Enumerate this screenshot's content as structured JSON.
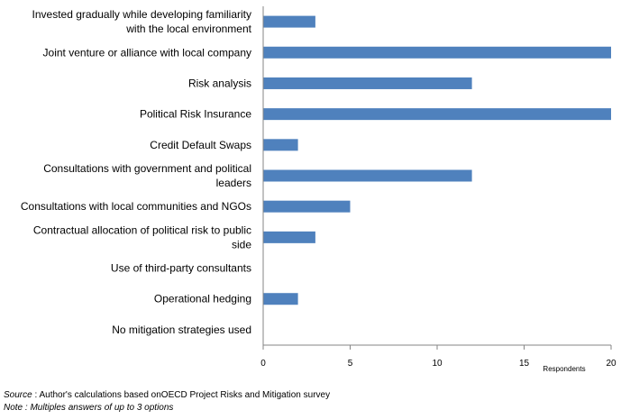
{
  "chart_data": {
    "type": "bar",
    "orientation": "horizontal",
    "categories": [
      [
        "Invested gradually while developing familiarity",
        "with the local environment"
      ],
      [
        "Joint venture or alliance with local company"
      ],
      [
        "Risk analysis"
      ],
      [
        "Political Risk Insurance"
      ],
      [
        "Credit Default Swaps"
      ],
      [
        "Consultations with government and political",
        "leaders"
      ],
      [
        "Consultations with local communities and NGOs"
      ],
      [
        "Contractual allocation of political risk to public",
        "side"
      ],
      [
        "Use of third-party consultants"
      ],
      [
        "Operational hedging"
      ],
      [
        "No mitigation strategies used"
      ]
    ],
    "values": [
      3,
      20,
      12,
      20,
      2,
      12,
      5,
      3,
      0,
      2,
      0
    ],
    "xlabel": "Respondents",
    "xlim": [
      0,
      20
    ],
    "xticks": [
      0,
      5,
      10,
      15,
      20
    ],
    "bar_color": "#4f81bd",
    "grid": false
  },
  "footnotes": {
    "source_key": "Source",
    "source_text": " : Author's calculations based onOECD  Project Risks and Mitigation survey",
    "note_text": "Note : Multiples answers of up to 3 options"
  }
}
